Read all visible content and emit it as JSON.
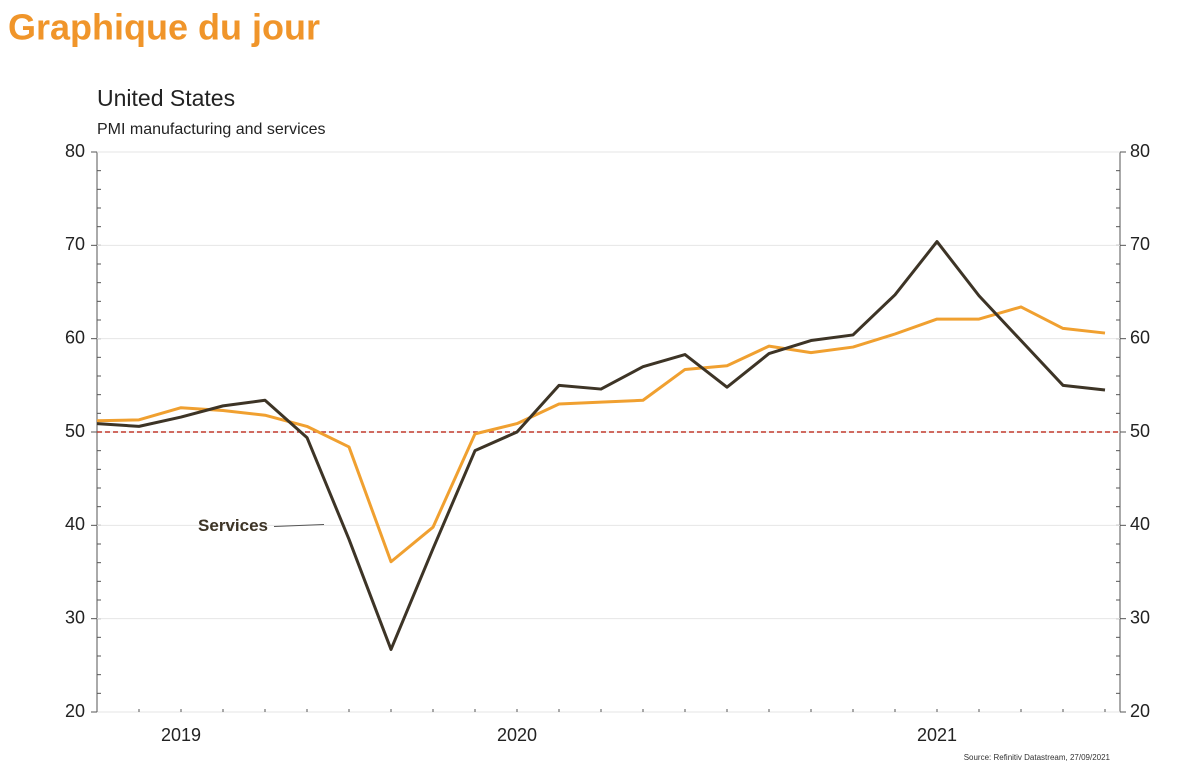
{
  "header": {
    "title": "Graphique du jour"
  },
  "chart_data": {
    "type": "line",
    "title": "United States",
    "subtitle": "PMI manufacturing and services",
    "categories": [
      null,
      null,
      "2019",
      null,
      null,
      null,
      null,
      null,
      null,
      null,
      "2020",
      null,
      null,
      null,
      null,
      null,
      null,
      null,
      null,
      null,
      "2021",
      null,
      null,
      null,
      null
    ],
    "series": [
      {
        "color": "#f0a030",
        "values": [
          51.2,
          51.3,
          52.6,
          52.3,
          51.8,
          50.6,
          48.4,
          36.1,
          39.8,
          49.8,
          50.9,
          53,
          53.2,
          53.4,
          56.7,
          57.1,
          59.2,
          58.5,
          59.1,
          60.5,
          62.1,
          62.1,
          63.4,
          61.1,
          60.6
        ]
      },
      {
        "name": "Services",
        "color": "#3d3426",
        "values": [
          50.9,
          50.6,
          51.6,
          52.8,
          53.4,
          49.4,
          38.5,
          26.7,
          37.5,
          48,
          50,
          55,
          54.6,
          57,
          58.3,
          54.8,
          58.4,
          59.8,
          60.4,
          64.7,
          70.4,
          64.6,
          59.8,
          55,
          54.5
        ]
      }
    ],
    "ylim": [
      20,
      80
    ],
    "yticks": [
      20,
      30,
      40,
      50,
      60,
      70,
      80
    ],
    "y2lim": [
      20,
      80
    ],
    "y2ticks": [
      20,
      30,
      40,
      50,
      60,
      70,
      80
    ],
    "reference_line": {
      "value": 50,
      "color": "#c0392b"
    },
    "annotations": [
      {
        "text": "Services",
        "series": 1,
        "index": 6
      }
    ],
    "source": "Source: Refinitiv Datastream, 27/09/2021"
  }
}
